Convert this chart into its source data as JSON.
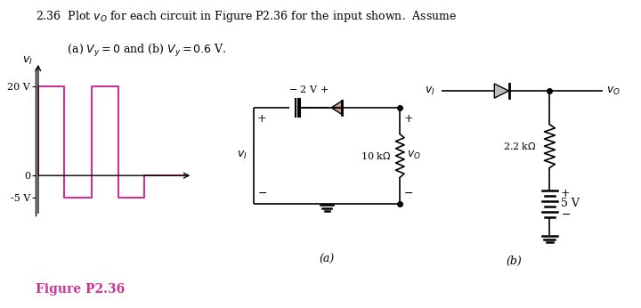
{
  "title_line1": "2.36  Plot $v_O$ for each circuit in Figure P2.36 for the input shown.  Assume",
  "title_line2": "         (a) $V_y = 0$ and (b) $V_y = 0.6$ V.",
  "figure_label": "Figure P2.36",
  "figure_label_color": "#cc3399",
  "bg_color": "#ffffff",
  "waveform_color": "#cc3399"
}
